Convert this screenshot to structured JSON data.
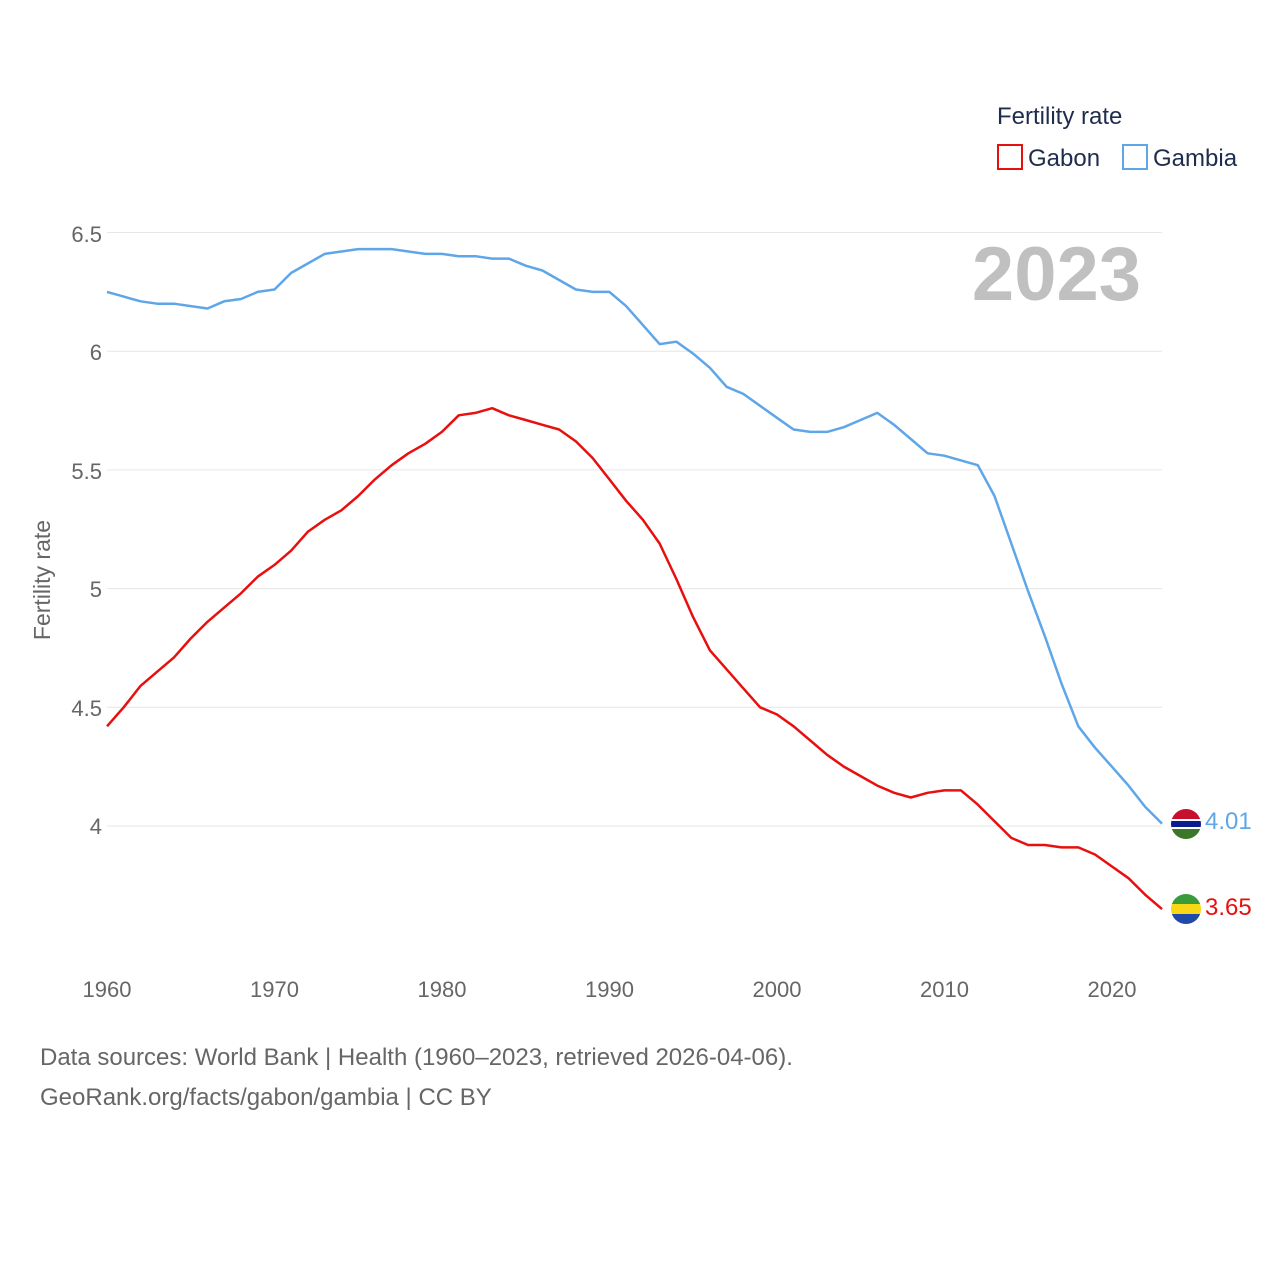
{
  "chart_data": {
    "type": "line",
    "legend_title": "Fertility rate",
    "ylabel": "Fertility rate",
    "year_label": "2023",
    "ylim": [
      3.5,
      6.6
    ],
    "yticks": [
      "4",
      "4.5",
      "5",
      "5.5",
      "6",
      "6.5"
    ],
    "xlim": [
      1960,
      2023
    ],
    "xticks": [
      "1960",
      "1970",
      "1980",
      "1990",
      "2000",
      "2010",
      "2020"
    ],
    "x": [
      1960,
      1961,
      1962,
      1963,
      1964,
      1965,
      1966,
      1967,
      1968,
      1969,
      1970,
      1971,
      1972,
      1973,
      1974,
      1975,
      1976,
      1977,
      1978,
      1979,
      1980,
      1981,
      1982,
      1983,
      1984,
      1985,
      1986,
      1987,
      1988,
      1989,
      1990,
      1991,
      1992,
      1993,
      1994,
      1995,
      1996,
      1997,
      1998,
      1999,
      2000,
      2001,
      2002,
      2003,
      2004,
      2005,
      2006,
      2007,
      2008,
      2009,
      2010,
      2011,
      2012,
      2013,
      2014,
      2015,
      2016,
      2017,
      2018,
      2019,
      2020,
      2021,
      2022,
      2023
    ],
    "series": [
      {
        "name": "Gabon",
        "color": "#e8100e",
        "end_label": "3.65",
        "values": [
          4.42,
          4.5,
          4.59,
          4.65,
          4.71,
          4.79,
          4.86,
          4.92,
          4.98,
          5.05,
          5.1,
          5.16,
          5.24,
          5.29,
          5.33,
          5.39,
          5.46,
          5.52,
          5.57,
          5.61,
          5.66,
          5.73,
          5.74,
          5.76,
          5.73,
          5.71,
          5.69,
          5.67,
          5.62,
          5.55,
          5.46,
          5.37,
          5.29,
          5.19,
          5.04,
          4.88,
          4.74,
          4.66,
          4.58,
          4.5,
          4.47,
          4.42,
          4.36,
          4.3,
          4.25,
          4.21,
          4.17,
          4.14,
          4.12,
          4.14,
          4.15,
          4.15,
          4.09,
          4.02,
          3.95,
          3.92,
          3.92,
          3.91,
          3.91,
          3.88,
          3.83,
          3.78,
          3.71,
          3.65
        ]
      },
      {
        "name": "Gambia",
        "color": "#5fa6e8",
        "end_label": "4.01",
        "values": [
          6.25,
          6.23,
          6.21,
          6.2,
          6.2,
          6.19,
          6.18,
          6.21,
          6.22,
          6.25,
          6.26,
          6.33,
          6.37,
          6.41,
          6.42,
          6.43,
          6.43,
          6.43,
          6.42,
          6.41,
          6.41,
          6.4,
          6.4,
          6.39,
          6.39,
          6.36,
          6.34,
          6.3,
          6.26,
          6.25,
          6.25,
          6.19,
          6.11,
          6.03,
          6.04,
          5.99,
          5.93,
          5.85,
          5.82,
          5.77,
          5.72,
          5.67,
          5.66,
          5.66,
          5.68,
          5.71,
          5.74,
          5.69,
          5.63,
          5.57,
          5.56,
          5.54,
          5.52,
          5.39,
          5.19,
          4.99,
          4.8,
          4.6,
          4.42,
          4.33,
          4.25,
          4.17,
          4.08,
          4.01
        ]
      }
    ]
  },
  "footer": {
    "sources": "Data sources: World Bank | Health (1960–2023, retrieved 2026-04-06).",
    "url": "GeoRank.org/facts/gabon/gambia | CC BY"
  },
  "flags": {
    "gabon": {
      "colors": [
        "#3a9b3a",
        "#f9d616",
        "#1f4aa8"
      ]
    },
    "gambia": {
      "colors": [
        "#c8102e",
        "#0c1c8c",
        "#3a7728"
      ]
    }
  }
}
